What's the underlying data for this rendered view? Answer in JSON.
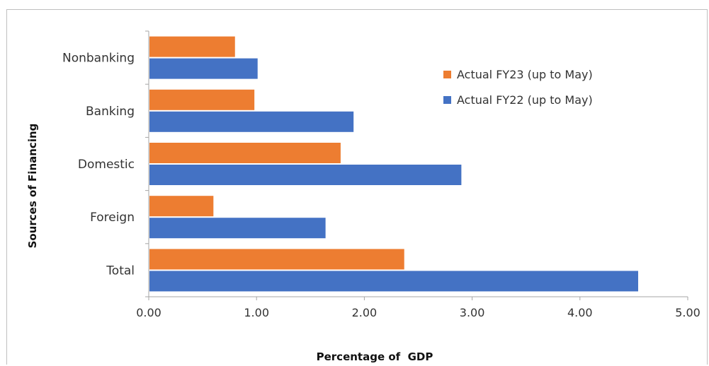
{
  "chart_data": {
    "type": "bar",
    "orientation": "horizontal",
    "categories": [
      "Nonbanking",
      "Banking",
      "Domestic",
      "Foreign",
      "Total"
    ],
    "series": [
      {
        "name": "Actual FY23 (up to May)",
        "values": [
          0.8,
          0.98,
          1.78,
          0.6,
          2.37
        ],
        "color": "#ED7D31"
      },
      {
        "name": "Actual FY22 (up to May)",
        "values": [
          1.01,
          1.9,
          2.9,
          1.64,
          4.54
        ],
        "color": "#4472C4"
      }
    ],
    "xlabel": "Percentage of  GDP",
    "ylabel": "Sources of Financing",
    "xlim": [
      0,
      5
    ],
    "xticks": [
      "0.00",
      "1.00",
      "2.00",
      "3.00",
      "4.00",
      "5.00"
    ],
    "grid": false,
    "legend_position": "top-right",
    "legend_order": [
      0,
      1
    ]
  }
}
